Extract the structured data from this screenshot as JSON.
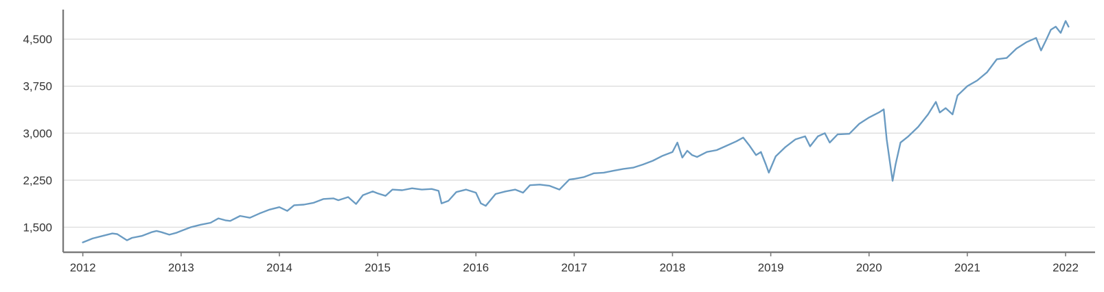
{
  "chart_data": {
    "type": "line",
    "title": "",
    "xlabel": "",
    "ylabel": "",
    "grid": "horizontal",
    "legend": "none",
    "colors": {
      "series": "#6a9bc2",
      "grid": "#d9d9d9",
      "axis": "#7a7a7a",
      "text": "#333333"
    },
    "xlim": [
      2011.8,
      2022.3
    ],
    "ylim": [
      1100,
      4950
    ],
    "x_ticks": [
      2012,
      2013,
      2014,
      2015,
      2016,
      2017,
      2018,
      2019,
      2020,
      2021,
      2022
    ],
    "x_tick_labels": [
      "2012",
      "2013",
      "2014",
      "2015",
      "2016",
      "2017",
      "2018",
      "2019",
      "2020",
      "2021",
      "2022"
    ],
    "y_ticks": [
      1500,
      2250,
      3000,
      3750,
      4500
    ],
    "y_tick_labels": [
      "1,500",
      "2,250",
      "3,000",
      "3,750",
      "4,500"
    ],
    "series": [
      {
        "values": [
          [
            2012.0,
            1258
          ],
          [
            2012.1,
            1320
          ],
          [
            2012.2,
            1360
          ],
          [
            2012.3,
            1400
          ],
          [
            2012.35,
            1390
          ],
          [
            2012.42,
            1320
          ],
          [
            2012.45,
            1290
          ],
          [
            2012.5,
            1330
          ],
          [
            2012.6,
            1360
          ],
          [
            2012.7,
            1420
          ],
          [
            2012.75,
            1440
          ],
          [
            2012.8,
            1420
          ],
          [
            2012.88,
            1380
          ],
          [
            2012.95,
            1410
          ],
          [
            2013.0,
            1440
          ],
          [
            2013.1,
            1500
          ],
          [
            2013.2,
            1540
          ],
          [
            2013.3,
            1570
          ],
          [
            2013.38,
            1640
          ],
          [
            2013.45,
            1610
          ],
          [
            2013.5,
            1600
          ],
          [
            2013.6,
            1680
          ],
          [
            2013.7,
            1650
          ],
          [
            2013.8,
            1720
          ],
          [
            2013.9,
            1780
          ],
          [
            2014.0,
            1820
          ],
          [
            2014.08,
            1760
          ],
          [
            2014.15,
            1850
          ],
          [
            2014.25,
            1860
          ],
          [
            2014.35,
            1890
          ],
          [
            2014.45,
            1950
          ],
          [
            2014.55,
            1960
          ],
          [
            2014.6,
            1930
          ],
          [
            2014.7,
            1980
          ],
          [
            2014.78,
            1870
          ],
          [
            2014.85,
            2010
          ],
          [
            2014.95,
            2070
          ],
          [
            2015.0,
            2040
          ],
          [
            2015.08,
            2000
          ],
          [
            2015.15,
            2100
          ],
          [
            2015.25,
            2090
          ],
          [
            2015.35,
            2120
          ],
          [
            2015.45,
            2100
          ],
          [
            2015.55,
            2110
          ],
          [
            2015.62,
            2080
          ],
          [
            2015.65,
            1880
          ],
          [
            2015.72,
            1920
          ],
          [
            2015.8,
            2060
          ],
          [
            2015.9,
            2100
          ],
          [
            2016.0,
            2050
          ],
          [
            2016.05,
            1880
          ],
          [
            2016.1,
            1840
          ],
          [
            2016.2,
            2030
          ],
          [
            2016.3,
            2070
          ],
          [
            2016.4,
            2100
          ],
          [
            2016.48,
            2050
          ],
          [
            2016.55,
            2170
          ],
          [
            2016.65,
            2180
          ],
          [
            2016.75,
            2160
          ],
          [
            2016.85,
            2100
          ],
          [
            2016.95,
            2260
          ],
          [
            2017.0,
            2270
          ],
          [
            2017.1,
            2300
          ],
          [
            2017.2,
            2360
          ],
          [
            2017.3,
            2370
          ],
          [
            2017.4,
            2400
          ],
          [
            2017.5,
            2430
          ],
          [
            2017.6,
            2450
          ],
          [
            2017.7,
            2500
          ],
          [
            2017.8,
            2560
          ],
          [
            2017.9,
            2640
          ],
          [
            2018.0,
            2700
          ],
          [
            2018.05,
            2850
          ],
          [
            2018.1,
            2610
          ],
          [
            2018.15,
            2720
          ],
          [
            2018.2,
            2650
          ],
          [
            2018.25,
            2620
          ],
          [
            2018.35,
            2700
          ],
          [
            2018.45,
            2730
          ],
          [
            2018.55,
            2800
          ],
          [
            2018.65,
            2870
          ],
          [
            2018.72,
            2930
          ],
          [
            2018.78,
            2810
          ],
          [
            2018.85,
            2650
          ],
          [
            2018.9,
            2700
          ],
          [
            2018.95,
            2500
          ],
          [
            2018.98,
            2370
          ],
          [
            2019.05,
            2630
          ],
          [
            2019.15,
            2780
          ],
          [
            2019.25,
            2900
          ],
          [
            2019.35,
            2950
          ],
          [
            2019.4,
            2790
          ],
          [
            2019.48,
            2950
          ],
          [
            2019.55,
            3000
          ],
          [
            2019.6,
            2850
          ],
          [
            2019.68,
            2980
          ],
          [
            2019.8,
            2990
          ],
          [
            2019.9,
            3150
          ],
          [
            2020.0,
            3250
          ],
          [
            2020.1,
            3330
          ],
          [
            2020.15,
            3380
          ],
          [
            2020.18,
            2900
          ],
          [
            2020.22,
            2450
          ],
          [
            2020.24,
            2240
          ],
          [
            2020.27,
            2500
          ],
          [
            2020.32,
            2850
          ],
          [
            2020.4,
            2950
          ],
          [
            2020.5,
            3100
          ],
          [
            2020.6,
            3300
          ],
          [
            2020.68,
            3500
          ],
          [
            2020.72,
            3330
          ],
          [
            2020.78,
            3400
          ],
          [
            2020.85,
            3300
          ],
          [
            2020.9,
            3600
          ],
          [
            2021.0,
            3750
          ],
          [
            2021.1,
            3840
          ],
          [
            2021.2,
            3970
          ],
          [
            2021.3,
            4180
          ],
          [
            2021.4,
            4200
          ],
          [
            2021.5,
            4350
          ],
          [
            2021.6,
            4450
          ],
          [
            2021.7,
            4520
          ],
          [
            2021.75,
            4320
          ],
          [
            2021.8,
            4480
          ],
          [
            2021.85,
            4650
          ],
          [
            2021.9,
            4700
          ],
          [
            2021.95,
            4600
          ],
          [
            2022.0,
            4790
          ],
          [
            2022.03,
            4700
          ]
        ]
      }
    ]
  }
}
